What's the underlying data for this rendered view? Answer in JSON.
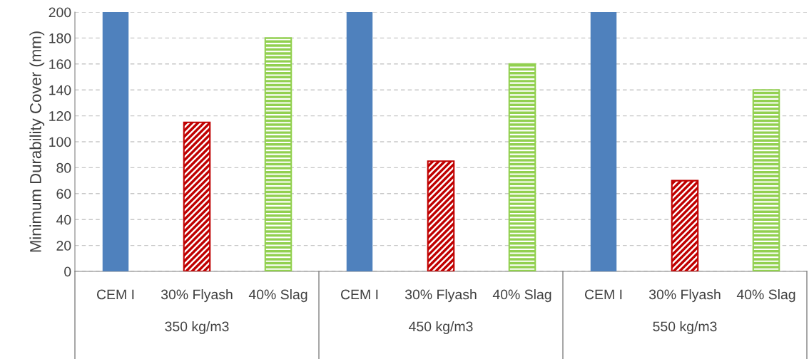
{
  "chart_data": {
    "type": "bar",
    "ylabel": "Minimum Durability Cover (mm)",
    "categories": [
      "CEM I",
      "30% Flyash",
      "40% Slag",
      "CEM I",
      "30% Flyash",
      "40% Slag",
      "CEM I",
      "30% Flyash",
      "40% Slag"
    ],
    "values": [
      200,
      115,
      180,
      200,
      85,
      160,
      200,
      70,
      140
    ],
    "colors": [
      "#4f81bd",
      "#c00000",
      "#92d050",
      "#4f81bd",
      "#c00000",
      "#92d050",
      "#4f81bd",
      "#c00000",
      "#92d050"
    ],
    "annotations": [
      "350 kg/m3",
      "450 kg/m3",
      "550 kg/m3"
    ],
    "ylim": [
      0,
      200
    ],
    "yticks": [
      0,
      20,
      40,
      60,
      80,
      100,
      120,
      140,
      160,
      180,
      200
    ],
    "grid": "y"
  }
}
